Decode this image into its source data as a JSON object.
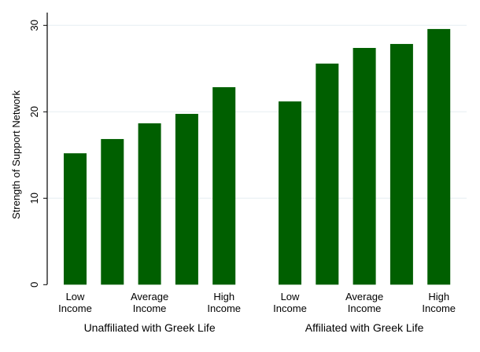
{
  "chart_data": {
    "type": "bar",
    "ylabel": "Strength of Support Network",
    "ylim": [
      0,
      30
    ],
    "yticks": [
      0,
      10,
      20,
      30
    ],
    "grid": true,
    "bar_color": "#005f00",
    "grid_color": "#e6eef2",
    "groups": [
      {
        "label": "Unaffiliated with Greek Life",
        "bar_labels": [
          "Low\nIncome",
          "",
          "Average\nIncome",
          "",
          "High\nIncome"
        ],
        "values": [
          15.2,
          16.85,
          18.67,
          19.76,
          22.85
        ]
      },
      {
        "label": "Affiliated with Greek Life",
        "bar_labels": [
          "Low\nIncome",
          "",
          "Average\nIncome",
          "",
          "High\nIncome"
        ],
        "values": [
          21.2,
          25.58,
          27.39,
          27.85,
          29.58
        ]
      }
    ]
  }
}
